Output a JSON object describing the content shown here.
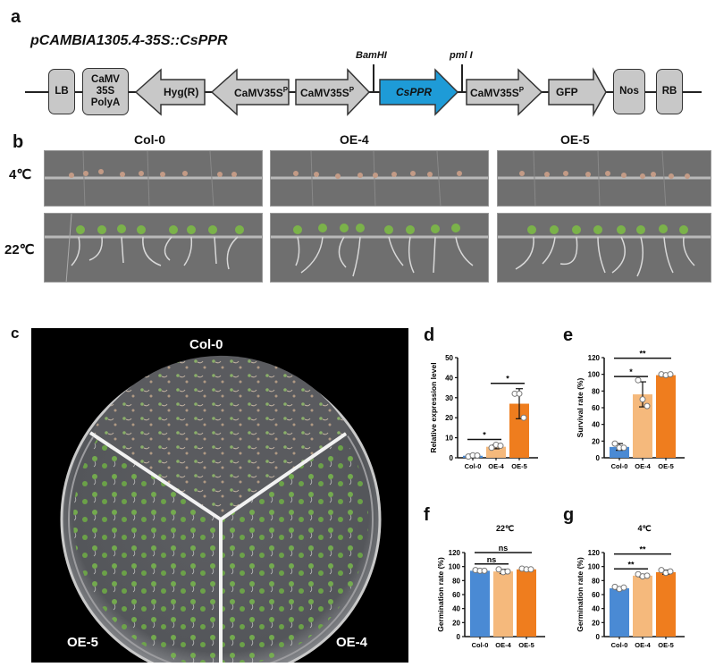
{
  "panels": {
    "a": {
      "letter": "a",
      "title": "pCAMBIA1305.4-35S::CsPPR",
      "sites": [
        "BamHI",
        "pml I"
      ],
      "segments": [
        {
          "label": "LB",
          "shape": "box"
        },
        {
          "label": "CaMV 35S PolyA",
          "lines": [
            "CaMV",
            "35S",
            "PolyA"
          ],
          "shape": "box"
        },
        {
          "label": "Hyg(R)",
          "shape": "arrow-left"
        },
        {
          "label": "CaMV35S",
          "sup": "P",
          "shape": "arrow-left"
        },
        {
          "label": "CaMV35S",
          "sup": "P",
          "shape": "arrow-right"
        },
        {
          "label": "CsPPR",
          "shape": "arrow-right",
          "color": "#1e9bd7"
        },
        {
          "label": "CaMV35S",
          "sup": "P",
          "shape": "arrow-right"
        },
        {
          "label": "GFP",
          "shape": "arrow-right"
        },
        {
          "label": "Nos",
          "shape": "box"
        },
        {
          "label": "RB",
          "shape": "box"
        }
      ]
    },
    "b": {
      "letter": "b",
      "columns": [
        "Col-0",
        "OE-4",
        "OE-5"
      ],
      "rows": [
        "4℃",
        "22℃"
      ]
    },
    "c": {
      "letter": "c",
      "sections": [
        "Col-0",
        "OE-5",
        "OE-4"
      ]
    },
    "d": {
      "letter": "d"
    },
    "e": {
      "letter": "e"
    },
    "f": {
      "letter": "f"
    },
    "g": {
      "letter": "g"
    }
  },
  "colors": {
    "col0": "#4a8ad4",
    "oe4": "#f5b97c",
    "oe5": "#ef7d1e",
    "gene": "#1e9bd7",
    "segment": "#c8c8c8"
  },
  "chart_data": [
    {
      "panel": "d",
      "type": "bar",
      "title": "",
      "categories": [
        "Col-0",
        "OE-4",
        "OE-5"
      ],
      "values": [
        1,
        5.5,
        27
      ],
      "errors": [
        0.8,
        1,
        7.5
      ],
      "points": [
        [
          0.6,
          1.2,
          1.1
        ],
        [
          5,
          6.5,
          6
        ],
        [
          32,
          32,
          20
        ]
      ],
      "xlabel": "",
      "ylabel": "Relative expression level",
      "ylim": [
        0,
        50
      ],
      "yticks": [
        0,
        10,
        20,
        30,
        40,
        50
      ],
      "significance": [
        {
          "from": 0,
          "to": 1,
          "label": "*"
        },
        {
          "from": 1,
          "to": 2,
          "label": "*"
        }
      ]
    },
    {
      "panel": "e",
      "type": "bar",
      "title": "",
      "categories": [
        "Col-0",
        "OE-4",
        "OE-5"
      ],
      "values": [
        13,
        76,
        99
      ],
      "errors": [
        4,
        15,
        1
      ],
      "points": [
        [
          17,
          12,
          12
        ],
        [
          93,
          70,
          62
        ],
        [
          100,
          99,
          100
        ]
      ],
      "xlabel": "",
      "ylabel": "Survival rate (%)",
      "ylim": [
        0,
        120
      ],
      "yticks": [
        0,
        20,
        40,
        60,
        80,
        100,
        120
      ],
      "significance": [
        {
          "from": 0,
          "to": 1,
          "label": "*"
        },
        {
          "from": 0,
          "to": 2,
          "label": "**"
        }
      ]
    },
    {
      "panel": "f",
      "type": "bar",
      "title": "22℃",
      "categories": [
        "Col-0",
        "OE-4",
        "OE-5"
      ],
      "values": [
        94,
        93,
        96
      ],
      "errors": [
        1.5,
        3,
        1
      ],
      "points": [
        [
          95,
          94,
          94
        ],
        [
          96,
          92,
          93
        ],
        [
          97,
          96,
          96
        ]
      ],
      "xlabel": "",
      "ylabel": "Germination rate (%)",
      "ylim": [
        0,
        120
      ],
      "yticks": [
        0,
        20,
        40,
        60,
        80,
        100,
        120
      ],
      "significance": [
        {
          "from": 0,
          "to": 1,
          "label": "ns"
        },
        {
          "from": 0,
          "to": 2,
          "label": "ns"
        }
      ]
    },
    {
      "panel": "g",
      "type": "bar",
      "title": "4℃",
      "categories": [
        "Col-0",
        "OE-4",
        "OE-5"
      ],
      "values": [
        69,
        87,
        92
      ],
      "errors": [
        2,
        2,
        3
      ],
      "points": [
        [
          71,
          68,
          70
        ],
        [
          89,
          86,
          87
        ],
        [
          95,
          91,
          93
        ]
      ],
      "xlabel": "",
      "ylabel": "Germination rate (%)",
      "ylim": [
        0,
        120
      ],
      "yticks": [
        0,
        20,
        40,
        60,
        80,
        100,
        120
      ],
      "significance": [
        {
          "from": 0,
          "to": 1,
          "label": "**"
        },
        {
          "from": 0,
          "to": 2,
          "label": "**"
        }
      ]
    }
  ]
}
